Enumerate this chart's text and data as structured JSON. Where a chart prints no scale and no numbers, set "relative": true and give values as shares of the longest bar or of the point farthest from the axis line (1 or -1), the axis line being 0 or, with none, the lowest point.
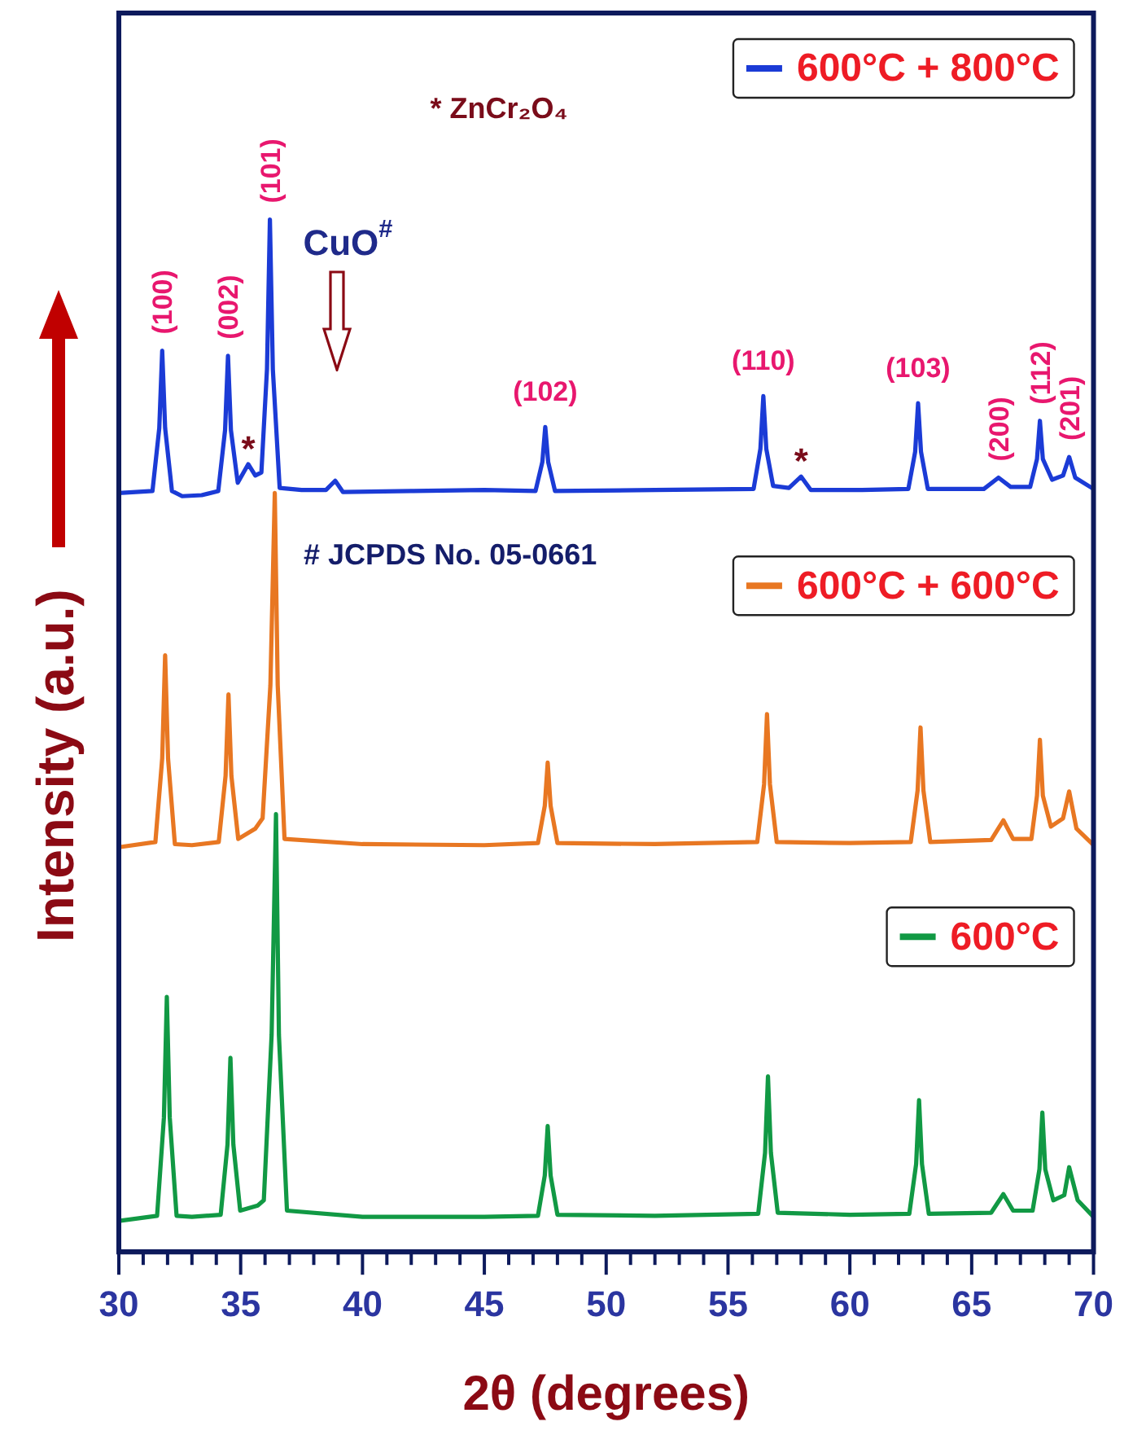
{
  "chart_data": {
    "type": "line",
    "relative": true,
    "legend": "right",
    "xlabel": "2θ (degrees)",
    "ylabel": "Intensity (a.u.)",
    "xlim": [
      30,
      70
    ],
    "xticks": [
      30,
      {
        "value": 31,
        "label": null
      },
      {
        "value": 32,
        "label": null
      },
      {
        "value": 33,
        "label": null
      },
      {
        "value": 34,
        "label": null
      },
      35,
      {
        "value": 36,
        "label": null
      },
      {
        "value": 37,
        "label": null
      },
      {
        "value": 38,
        "label": null
      },
      {
        "value": 39,
        "label": null
      },
      40,
      {
        "value": 41,
        "label": null
      },
      {
        "value": 42,
        "label": null
      },
      {
        "value": 43,
        "label": null
      },
      {
        "value": 44,
        "label": null
      },
      45,
      {
        "value": 46,
        "label": null
      },
      {
        "value": 47,
        "label": null
      },
      {
        "value": 48,
        "label": null
      },
      {
        "value": 49,
        "label": null
      },
      50,
      {
        "value": 51,
        "label": null
      },
      {
        "value": 52,
        "label": null
      },
      {
        "value": 53,
        "label": null
      },
      {
        "value": 54,
        "label": null
      },
      55,
      {
        "value": 56,
        "label": null
      },
      {
        "value": 57,
        "label": null
      },
      {
        "value": 58,
        "label": null
      },
      {
        "value": 59,
        "label": null
      },
      60,
      {
        "value": 61,
        "label": null
      },
      {
        "value": 62,
        "label": null
      },
      {
        "value": 63,
        "label": null
      },
      {
        "value": 64,
        "label": null
      },
      65,
      {
        "value": 66,
        "label": null
      },
      {
        "value": 67,
        "label": null
      },
      {
        "value": 68,
        "label": null
      },
      {
        "value": 69,
        "label": null
      },
      70
    ],
    "series": [
      {
        "name": "600°C + 800°C",
        "color": "#1b3bd6",
        "x": [
          30,
          31.38,
          31.66,
          31.78,
          31.9,
          32.18,
          32.6,
          33.4,
          34.08,
          34.36,
          34.48,
          34.6,
          34.88,
          35.31,
          35.6,
          35.85,
          36.08,
          36.2,
          36.32,
          36.6,
          37.5,
          38.5,
          38.88,
          39.2,
          42,
          45,
          47.1,
          47.38,
          47.5,
          47.62,
          47.9,
          52,
          56.05,
          56.33,
          56.45,
          56.57,
          56.85,
          57.5,
          58,
          58.4,
          60.5,
          62.4,
          62.68,
          62.8,
          62.92,
          63.2,
          65.5,
          66.1,
          66.6,
          67.4,
          67.68,
          67.8,
          67.92,
          68.3,
          68.75,
          69,
          69.25,
          70
        ],
        "values": [
          0.735,
          0.737,
          0.798,
          0.873,
          0.798,
          0.737,
          0.732,
          0.733,
          0.737,
          0.796,
          0.868,
          0.796,
          0.745,
          0.763,
          0.752,
          0.755,
          0.855,
          1,
          0.855,
          0.74,
          0.738,
          0.738,
          0.747,
          0.736,
          0.737,
          0.738,
          0.737,
          0.765,
          0.799,
          0.765,
          0.737,
          0.738,
          0.739,
          0.778,
          0.829,
          0.778,
          0.742,
          0.74,
          0.751,
          0.738,
          0.738,
          0.739,
          0.775,
          0.822,
          0.775,
          0.739,
          0.739,
          0.75,
          0.741,
          0.741,
          0.768,
          0.805,
          0.768,
          0.748,
          0.752,
          0.77,
          0.75,
          0.739
        ]
      },
      {
        "name": "600°C + 600°C",
        "color": "#e87722",
        "x": [
          30,
          31.5,
          31.78,
          31.9,
          32.02,
          32.3,
          33,
          34.1,
          34.38,
          34.5,
          34.62,
          34.9,
          35.6,
          35.9,
          36.22,
          36.4,
          36.52,
          36.8,
          40,
          45,
          47.2,
          47.48,
          47.6,
          47.72,
          48,
          52,
          56.2,
          56.48,
          56.6,
          56.72,
          57,
          60,
          62.5,
          62.78,
          62.9,
          63.02,
          63.3,
          65.8,
          66.3,
          66.7,
          67.45,
          67.68,
          67.8,
          67.92,
          68.25,
          68.75,
          69,
          69.3,
          70
        ],
        "values": [
          0.392,
          0.397,
          0.478,
          0.578,
          0.478,
          0.395,
          0.394,
          0.397,
          0.461,
          0.54,
          0.461,
          0.4,
          0.41,
          0.42,
          0.549,
          0.735,
          0.549,
          0.4,
          0.395,
          0.394,
          0.396,
          0.432,
          0.474,
          0.432,
          0.396,
          0.395,
          0.397,
          0.453,
          0.521,
          0.453,
          0.397,
          0.396,
          0.397,
          0.447,
          0.508,
          0.447,
          0.397,
          0.399,
          0.418,
          0.4,
          0.4,
          0.442,
          0.496,
          0.442,
          0.412,
          0.42,
          0.446,
          0.41,
          0.394
        ]
      },
      {
        "name": "600°C",
        "color": "#119944",
        "x": [
          30,
          31.57,
          31.85,
          31.97,
          32.09,
          32.37,
          33,
          34.18,
          34.46,
          34.58,
          34.7,
          34.98,
          35.7,
          35.95,
          36.27,
          36.45,
          36.57,
          36.9,
          40,
          45,
          47.2,
          47.48,
          47.6,
          47.72,
          48,
          52,
          56.24,
          56.52,
          56.64,
          56.76,
          57.04,
          60,
          62.44,
          62.72,
          62.84,
          62.96,
          63.24,
          65.8,
          66.3,
          66.7,
          67.5,
          67.78,
          67.9,
          68.02,
          68.35,
          68.8,
          69,
          69.35,
          70
        ],
        "values": [
          0.03,
          0.035,
          0.13,
          0.247,
          0.13,
          0.035,
          0.034,
          0.036,
          0.104,
          0.188,
          0.104,
          0.04,
          0.045,
          0.05,
          0.21,
          0.424,
          0.21,
          0.04,
          0.034,
          0.034,
          0.035,
          0.074,
          0.122,
          0.074,
          0.036,
          0.035,
          0.037,
          0.096,
          0.17,
          0.096,
          0.038,
          0.036,
          0.037,
          0.085,
          0.147,
          0.085,
          0.037,
          0.038,
          0.056,
          0.04,
          0.04,
          0.08,
          0.135,
          0.08,
          0.05,
          0.055,
          0.082,
          0.05,
          0.034
        ]
      }
    ],
    "annotations": [
      {
        "text": "(100)",
        "x": 31.78,
        "y": 0.873
      },
      {
        "text": "(002)",
        "x": 34.48,
        "y": 0.868
      },
      {
        "text": "(101)",
        "x": 36.2,
        "y": 1
      },
      {
        "text": "(102)",
        "x": 47.5,
        "y": 0.799
      },
      {
        "text": "(110)",
        "x": 56.45,
        "y": 0.829
      },
      {
        "text": "(103)",
        "x": 62.8,
        "y": 0.822
      },
      {
        "text": "(200)",
        "x": 66.1,
        "y": 0.75
      },
      {
        "text": "(112)",
        "x": 67.8,
        "y": 0.805
      },
      {
        "text": "(201)",
        "x": 69,
        "y": 0.77
      },
      {
        "text": "*",
        "x": 35.31,
        "y": 0.763
      },
      {
        "text": "*",
        "x": 58,
        "y": 0.751
      },
      "CuO$^{#}$",
      "* ZnCr₂O₄",
      "# JCPDS No. 05-0661"
    ]
  }
}
